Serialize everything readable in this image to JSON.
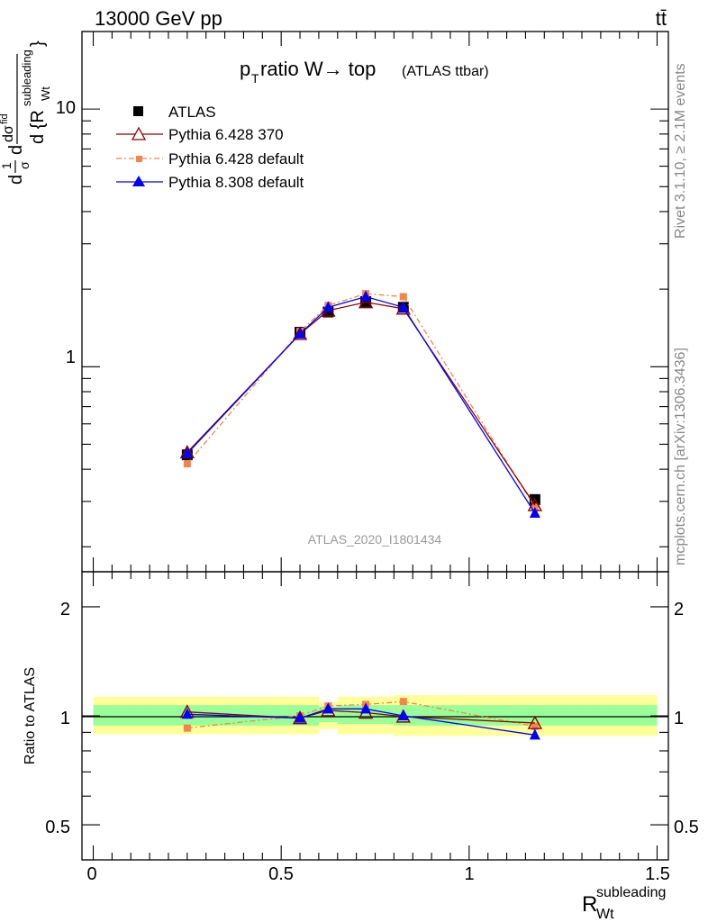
{
  "header": {
    "left": "13000 GeV pp",
    "right": "tt̄"
  },
  "side_labels": {
    "upper": "Rivet 3.1.10, ≥ 2.1M events",
    "lower": "mcplots.cern.ch [arXiv:1306.3436]"
  },
  "chart_data": [
    {
      "type": "line",
      "title_main": "p",
      "title_sub": "T",
      "title_rest": " ratio W→ top",
      "title_paren": "(ATLAS ttbar)",
      "ylabel": "dσ/d{R_Wt^subleading} (1/σ)",
      "watermark": "ATLAS_2020_I1801434",
      "yscale": "log",
      "ylim": [
        0.16,
        20
      ],
      "xlim": [
        -0.03,
        1.53
      ],
      "ytick_labels": [
        "1",
        "10"
      ],
      "grid": false,
      "legend_position": "top-left",
      "x": [
        0.25,
        0.55,
        0.625,
        0.725,
        0.825,
        1.175
      ],
      "series": [
        {
          "name": "ATLAS",
          "color": "#000000",
          "marker": "square",
          "values": [
            0.455,
            1.36,
            1.63,
            1.79,
            1.7,
            0.305
          ]
        },
        {
          "name": "Pythia 6.428 370",
          "color": "#8b0000",
          "marker": "open-triangle",
          "values": [
            0.465,
            1.34,
            1.65,
            1.78,
            1.68,
            0.29
          ]
        },
        {
          "name": "Pythia 6.428 default",
          "color": "#f5844a",
          "marker": "square-small",
          "dashed": true,
          "values": [
            0.42,
            1.37,
            1.73,
            1.92,
            1.87,
            0.285
          ]
        },
        {
          "name": "Pythia 8.308 default",
          "color": "#0000ff",
          "marker": "triangle",
          "values": [
            0.46,
            1.34,
            1.7,
            1.87,
            1.7,
            0.27
          ]
        }
      ]
    },
    {
      "type": "line",
      "ylabel": "Ratio to ATLAS",
      "xlabel_main": "R",
      "xlabel_sub": "Wt",
      "xlabel_sup": "subleading",
      "yscale": "log",
      "ylim": [
        0.4,
        2.5
      ],
      "xlim": [
        -0.03,
        1.53
      ],
      "ytick_labels": [
        "0.5",
        "1",
        "2"
      ],
      "xtick_labels": [
        "0",
        "0.5",
        "1",
        "1.5"
      ],
      "bands": [
        {
          "x0": 0.0,
          "x1": 0.6,
          "inner": [
            0.94,
            1.07
          ],
          "outer": [
            0.89,
            1.13
          ]
        },
        {
          "x0": 0.6,
          "x1": 0.65,
          "inner": [
            0.96,
            1.06
          ],
          "outer": [
            0.92,
            1.09
          ]
        },
        {
          "x0": 0.65,
          "x1": 0.8,
          "inner": [
            0.95,
            1.07
          ],
          "outer": [
            0.89,
            1.13
          ]
        },
        {
          "x0": 0.8,
          "x1": 1.5,
          "inner": [
            0.94,
            1.07
          ],
          "outer": [
            0.88,
            1.14
          ]
        }
      ],
      "band_colors": {
        "inner": "#99ff99",
        "outer": "#ffff99"
      },
      "x": [
        0.25,
        0.55,
        0.625,
        0.725,
        0.825,
        1.175
      ],
      "series": [
        {
          "name": "Pythia 6.428 370",
          "color": "#8b0000",
          "marker": "open-triangle",
          "values": [
            1.025,
            0.985,
            1.035,
            1.02,
            0.995,
            0.955
          ]
        },
        {
          "name": "Pythia 6.428 default",
          "color": "#f5844a",
          "marker": "square-small",
          "dashed": true,
          "values": [
            0.925,
            1.0,
            1.065,
            1.075,
            1.095,
            0.935
          ]
        },
        {
          "name": "Pythia 8.308 default",
          "color": "#0000ff",
          "marker": "triangle",
          "values": [
            1.01,
            0.985,
            1.045,
            1.045,
            1.0,
            0.885
          ]
        }
      ]
    }
  ]
}
